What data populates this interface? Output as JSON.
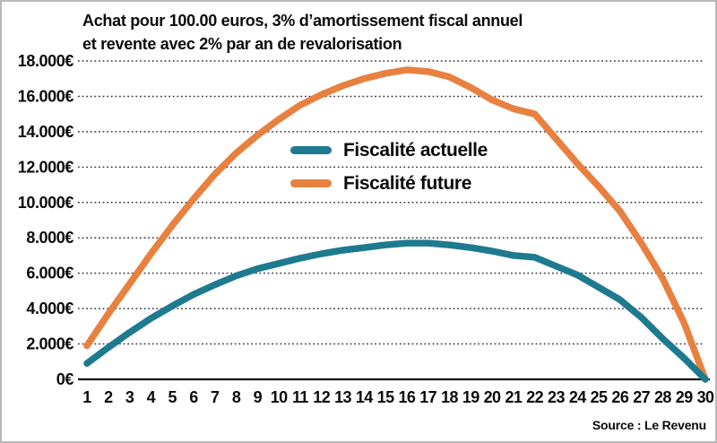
{
  "source": {
    "label": "Source : Le Revenu"
  },
  "colors": {
    "actuelle": "#1e7a8f",
    "future": "#e8803f",
    "grid": "#3a3a3a",
    "axis": "#111111",
    "border": "#b9b9b9",
    "text": "#0b0b0b"
  },
  "chart_data": {
    "type": "line",
    "title_line1": "Achat pour 100.00 euros, 3% d’amortissement fiscal annuel",
    "title_line2": "et revente avec 2% par an de revalorisation",
    "x": [
      1,
      2,
      3,
      4,
      5,
      6,
      7,
      8,
      9,
      10,
      11,
      12,
      13,
      14,
      15,
      16,
      17,
      18,
      19,
      20,
      21,
      22,
      23,
      24,
      25,
      26,
      27,
      28,
      29,
      30
    ],
    "series": [
      {
        "name": "Fiscalité actuelle",
        "color": "#1e7a8f",
        "values": [
          900,
          1800,
          2650,
          3450,
          4150,
          4800,
          5350,
          5850,
          6250,
          6550,
          6850,
          7100,
          7300,
          7450,
          7600,
          7700,
          7700,
          7600,
          7450,
          7250,
          7000,
          6900,
          6400,
          5900,
          5200,
          4500,
          3500,
          2300,
          1200,
          0
        ]
      },
      {
        "name": "Fiscalité future",
        "color": "#e8803f",
        "values": [
          1900,
          3700,
          5400,
          7100,
          8700,
          10200,
          11600,
          12800,
          13800,
          14700,
          15500,
          16100,
          16600,
          17000,
          17300,
          17500,
          17400,
          17100,
          16500,
          15800,
          15300,
          15000,
          13600,
          12200,
          10900,
          9500,
          7700,
          5700,
          3200,
          0
        ]
      }
    ],
    "ylim": [
      0,
      18000
    ],
    "ytick_step": 2000,
    "ytick_labels": [
      "0€",
      "2.000€",
      "4.000€",
      "6.000€",
      "8.000€",
      "10.000€",
      "12.000€",
      "14.000€",
      "16.000€",
      "18.000€"
    ],
    "grid": "horizontal dotted",
    "legend_position": "inside-center-left"
  }
}
